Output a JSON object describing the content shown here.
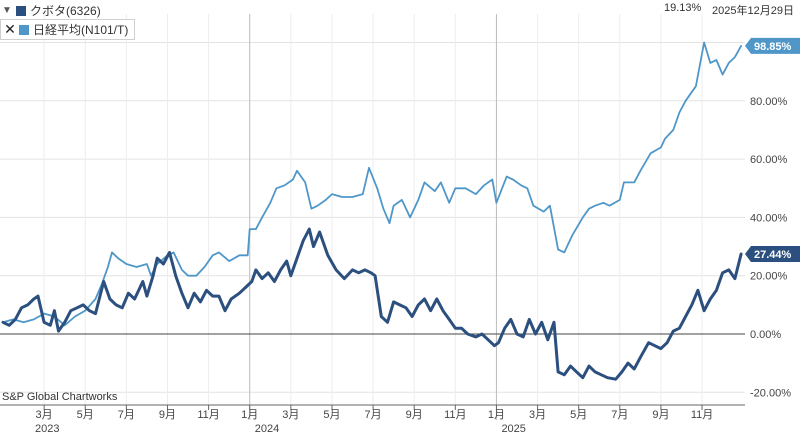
{
  "header": {
    "change_pct": "19.13%",
    "date": "2025年12月29日"
  },
  "legend": [
    {
      "name": "クボタ(6326)",
      "color": "#2b4f7e",
      "control": "▼"
    },
    {
      "name": "日経平均(N101/T)",
      "color": "#4f97c9",
      "control": "✕"
    }
  ],
  "source": "S&P Global Chartworks",
  "chart_data": {
    "type": "line",
    "y_unit": "%",
    "ylim": [
      -22,
      108
    ],
    "y_ticks": [
      "100.00%",
      "80.00%",
      "60.00%",
      "40.00%",
      "20.00%",
      "0.00%",
      "-20.00%"
    ],
    "y_tick_values": [
      100,
      80,
      60,
      40,
      20,
      0,
      -20
    ],
    "x_ticks": [
      "3月",
      "5月",
      "7月",
      "9月",
      "11月",
      "1月",
      "3月",
      "5月",
      "7月",
      "9月",
      "11月",
      "1月",
      "3月",
      "5月",
      "7月",
      "9月",
      "11月"
    ],
    "x_tick_t": [
      2,
      4,
      6,
      8,
      10,
      12,
      14,
      16,
      18,
      20,
      22,
      24,
      26,
      28,
      30,
      32,
      34
    ],
    "year_labels": [
      {
        "label": "2023",
        "t": 0
      },
      {
        "label": "2024",
        "t": 12
      },
      {
        "label": "2025",
        "t": 24
      }
    ],
    "year_dividers_t": [
      12,
      24
    ],
    "t_range": [
      0,
      35.9
    ],
    "end_labels": [
      "98.85%",
      "27.44%"
    ],
    "series": [
      {
        "name": "日経平均(N101/T)",
        "color": "#4f97c9",
        "points": [
          [
            0,
            4
          ],
          [
            0.5,
            5
          ],
          [
            1,
            4
          ],
          [
            1.5,
            5
          ],
          [
            2,
            7
          ],
          [
            2.5,
            6
          ],
          [
            3,
            3
          ],
          [
            3.5,
            6
          ],
          [
            4,
            8
          ],
          [
            4.5,
            12
          ],
          [
            4.8,
            17
          ],
          [
            5.1,
            23
          ],
          [
            5.3,
            28
          ],
          [
            5.6,
            26
          ],
          [
            6,
            24
          ],
          [
            6.5,
            23
          ],
          [
            7,
            24
          ],
          [
            7.2,
            20
          ],
          [
            7.5,
            24
          ],
          [
            8,
            27
          ],
          [
            8.3,
            28
          ],
          [
            8.7,
            22
          ],
          [
            9,
            20
          ],
          [
            9.4,
            20
          ],
          [
            9.8,
            23
          ],
          [
            10.2,
            27
          ],
          [
            10.5,
            28
          ],
          [
            11,
            25
          ],
          [
            11.5,
            27
          ],
          [
            11.9,
            27
          ],
          [
            12,
            36
          ],
          [
            12.3,
            36
          ],
          [
            12.6,
            40
          ],
          [
            13,
            45
          ],
          [
            13.3,
            50
          ],
          [
            13.7,
            51
          ],
          [
            14.1,
            53
          ],
          [
            14.3,
            56
          ],
          [
            14.7,
            52
          ],
          [
            15,
            43
          ],
          [
            15.3,
            44
          ],
          [
            15.7,
            46
          ],
          [
            16,
            48
          ],
          [
            16.5,
            47
          ],
          [
            17,
            47
          ],
          [
            17.5,
            48
          ],
          [
            17.8,
            57
          ],
          [
            18.2,
            50
          ],
          [
            18.5,
            43
          ],
          [
            18.8,
            38
          ],
          [
            19,
            44
          ],
          [
            19.4,
            46
          ],
          [
            19.8,
            40
          ],
          [
            20.2,
            46
          ],
          [
            20.5,
            52
          ],
          [
            21,
            49
          ],
          [
            21.3,
            52
          ],
          [
            21.7,
            45
          ],
          [
            22,
            50
          ],
          [
            22.5,
            50
          ],
          [
            23,
            48
          ],
          [
            23.4,
            51
          ],
          [
            23.8,
            53
          ],
          [
            24,
            45
          ],
          [
            24.5,
            54
          ],
          [
            24.8,
            53
          ],
          [
            25.2,
            51
          ],
          [
            25.5,
            50
          ],
          [
            25.8,
            44
          ],
          [
            26.3,
            42
          ],
          [
            26.6,
            44
          ],
          [
            27,
            29
          ],
          [
            27.3,
            28
          ],
          [
            27.7,
            34
          ],
          [
            28.2,
            40
          ],
          [
            28.5,
            43
          ],
          [
            28.8,
            44
          ],
          [
            29.2,
            45
          ],
          [
            29.5,
            44
          ],
          [
            30,
            46
          ],
          [
            30.2,
            52
          ],
          [
            30.7,
            52
          ],
          [
            31,
            56
          ],
          [
            31.5,
            62
          ],
          [
            32,
            64
          ],
          [
            32.2,
            67
          ],
          [
            32.6,
            70
          ],
          [
            32.9,
            76
          ],
          [
            33.2,
            80
          ],
          [
            33.7,
            85
          ],
          [
            34.1,
            100
          ],
          [
            34.4,
            93
          ],
          [
            34.7,
            94
          ],
          [
            35,
            89
          ],
          [
            35.3,
            93
          ],
          [
            35.6,
            95
          ],
          [
            35.9,
            98.85
          ]
        ]
      },
      {
        "name": "クボタ(6326)",
        "color": "#2b4f7e",
        "points": [
          [
            0,
            4
          ],
          [
            0.3,
            3
          ],
          [
            0.6,
            5
          ],
          [
            0.9,
            9
          ],
          [
            1.2,
            10
          ],
          [
            1.5,
            12
          ],
          [
            1.7,
            13
          ],
          [
            2,
            4
          ],
          [
            2.3,
            3
          ],
          [
            2.5,
            8
          ],
          [
            2.7,
            1
          ],
          [
            3,
            4
          ],
          [
            3.3,
            8
          ],
          [
            3.6,
            9
          ],
          [
            3.9,
            10
          ],
          [
            4.2,
            8
          ],
          [
            4.5,
            7
          ],
          [
            4.9,
            18
          ],
          [
            5.2,
            12
          ],
          [
            5.5,
            10
          ],
          [
            5.8,
            9
          ],
          [
            6.1,
            14
          ],
          [
            6.4,
            12
          ],
          [
            6.8,
            18
          ],
          [
            7,
            13
          ],
          [
            7.3,
            20
          ],
          [
            7.5,
            26
          ],
          [
            7.8,
            24
          ],
          [
            8.1,
            28
          ],
          [
            8.4,
            20
          ],
          [
            8.7,
            14
          ],
          [
            9,
            9
          ],
          [
            9.3,
            14
          ],
          [
            9.6,
            11
          ],
          [
            9.9,
            15
          ],
          [
            10.2,
            13
          ],
          [
            10.5,
            13
          ],
          [
            10.8,
            8
          ],
          [
            11.1,
            12
          ],
          [
            11.5,
            14
          ],
          [
            11.8,
            16
          ],
          [
            12.1,
            18
          ],
          [
            12.3,
            22
          ],
          [
            12.6,
            19
          ],
          [
            12.9,
            21
          ],
          [
            13.2,
            18
          ],
          [
            13.5,
            22
          ],
          [
            13.8,
            25
          ],
          [
            14,
            20
          ],
          [
            14.3,
            26
          ],
          [
            14.6,
            32
          ],
          [
            14.9,
            36
          ],
          [
            15.1,
            30
          ],
          [
            15.4,
            35
          ],
          [
            15.8,
            27
          ],
          [
            16.2,
            22
          ],
          [
            16.6,
            19
          ],
          [
            17,
            22
          ],
          [
            17.3,
            21
          ],
          [
            17.6,
            22
          ],
          [
            17.9,
            21
          ],
          [
            18.1,
            20
          ],
          [
            18.4,
            6
          ],
          [
            18.7,
            4
          ],
          [
            19,
            11
          ],
          [
            19.3,
            10
          ],
          [
            19.6,
            9
          ],
          [
            19.9,
            6
          ],
          [
            20.2,
            10
          ],
          [
            20.5,
            12
          ],
          [
            20.8,
            8
          ],
          [
            21.1,
            12
          ],
          [
            21.4,
            8
          ],
          [
            21.7,
            5
          ],
          [
            22,
            2
          ],
          [
            22.3,
            2
          ],
          [
            22.6,
            0
          ],
          [
            23,
            -1
          ],
          [
            23.3,
            0
          ],
          [
            23.6,
            -2
          ],
          [
            23.9,
            -4
          ],
          [
            24.1,
            -3
          ],
          [
            24.4,
            2
          ],
          [
            24.7,
            5
          ],
          [
            25,
            0
          ],
          [
            25.3,
            -1
          ],
          [
            25.6,
            5
          ],
          [
            25.9,
            0
          ],
          [
            26.2,
            4
          ],
          [
            26.5,
            -2
          ],
          [
            26.8,
            4
          ],
          [
            27,
            -13
          ],
          [
            27.3,
            -14
          ],
          [
            27.6,
            -11
          ],
          [
            27.9,
            -13
          ],
          [
            28.2,
            -15
          ],
          [
            28.5,
            -11
          ],
          [
            28.8,
            -13
          ],
          [
            29.1,
            -14
          ],
          [
            29.4,
            -15
          ],
          [
            29.8,
            -15.5
          ],
          [
            30.1,
            -13
          ],
          [
            30.4,
            -10
          ],
          [
            30.7,
            -12
          ],
          [
            31,
            -8
          ],
          [
            31.4,
            -3
          ],
          [
            31.7,
            -4
          ],
          [
            32,
            -5
          ],
          [
            32.3,
            -3
          ],
          [
            32.6,
            1
          ],
          [
            32.9,
            2
          ],
          [
            33.2,
            6
          ],
          [
            33.5,
            10
          ],
          [
            33.8,
            15
          ],
          [
            34.1,
            8
          ],
          [
            34.4,
            12
          ],
          [
            34.7,
            15
          ],
          [
            35,
            21
          ],
          [
            35.3,
            22
          ],
          [
            35.6,
            19
          ],
          [
            35.9,
            27.44
          ]
        ]
      }
    ]
  }
}
